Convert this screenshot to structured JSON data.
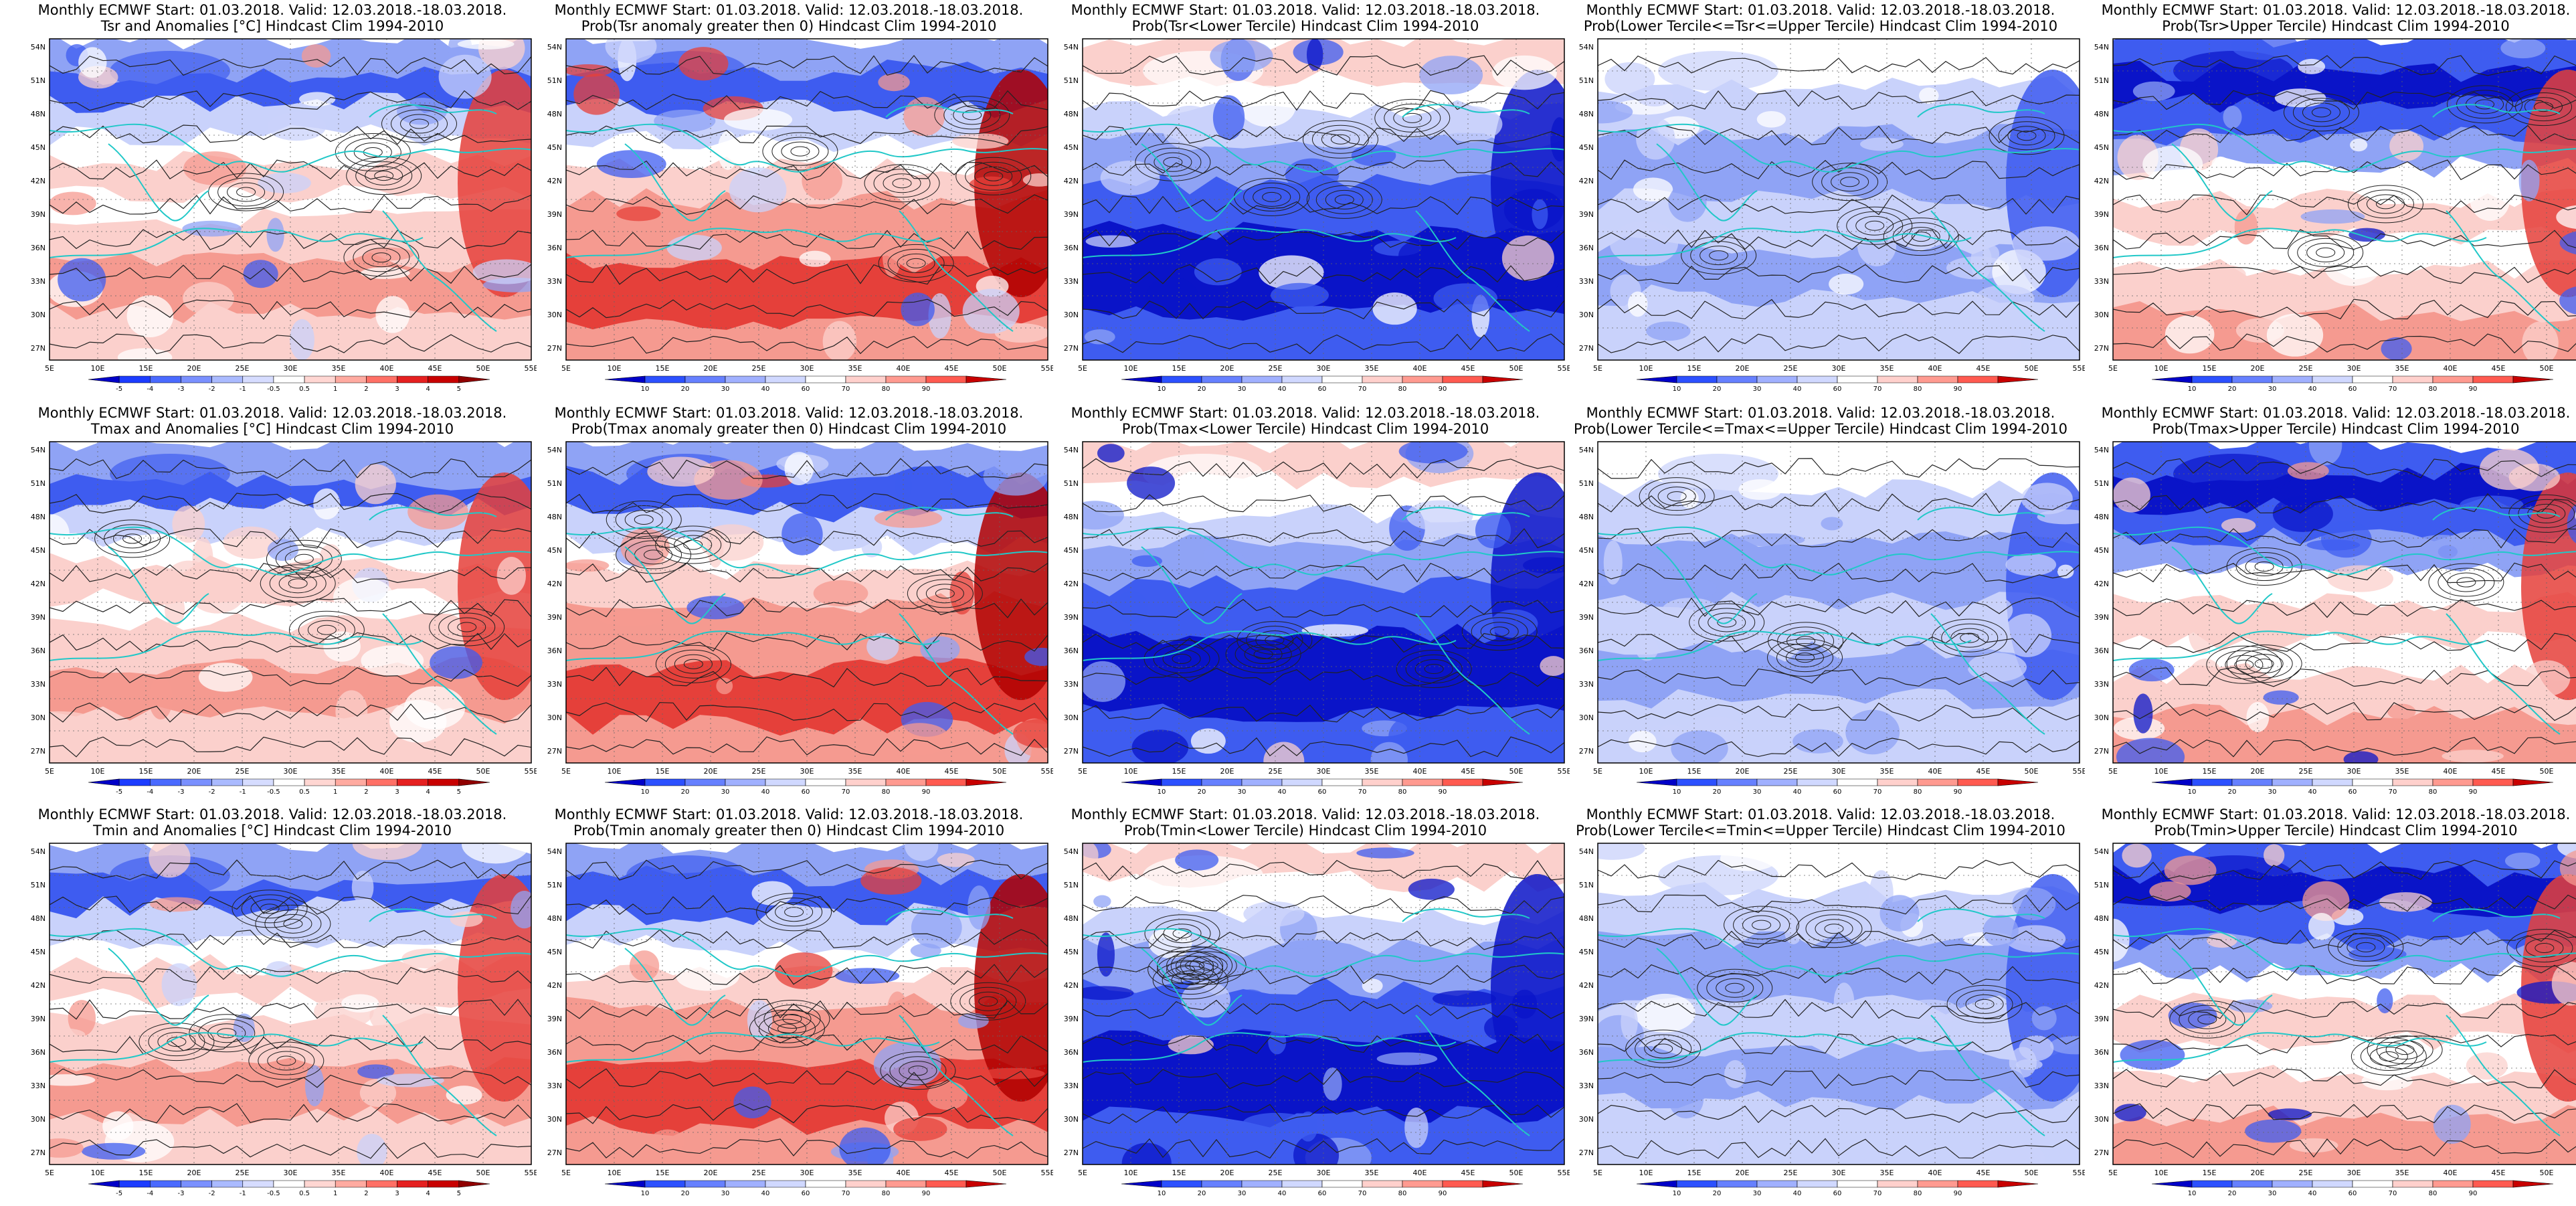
{
  "header_line": "Monthly ECMWF Start: 01.03.2018. Valid: 12.03.2018.-18.03.2018.",
  "lat_labels": [
    "54N",
    "51N",
    "48N",
    "45N",
    "42N",
    "39N",
    "36N",
    "33N",
    "30N",
    "27N"
  ],
  "lon_labels": [
    "5E",
    "10E",
    "15E",
    "20E",
    "25E",
    "30E",
    "35E",
    "40E",
    "45E",
    "50E",
    "55E"
  ],
  "palette": {
    "blue_dark": "#0a14c8",
    "blue_mid": "#3e5cf0",
    "blue_light": "#8fa3f5",
    "blue_pale": "#c9d2fb",
    "red_pale": "#fbd0cc",
    "red_light": "#f59a90",
    "red_mid": "#e5403a",
    "red_dark": "#b00000",
    "coast": "#21c8c8",
    "contour": "#222222"
  },
  "anomaly_scale": [
    "-5",
    "-4",
    "-3",
    "-2",
    "-1",
    "-0.5",
    "0.5",
    "1",
    "2",
    "3",
    "4",
    "5"
  ],
  "prob_scale": [
    "10",
    "20",
    "30",
    "40",
    "60",
    "70",
    "80",
    "90"
  ],
  "panels": [
    {
      "subtitle": "Tsr and Anomalies [°C] Hindcast Clim 1994-2010",
      "field": "anomaly",
      "scale": "anomaly"
    },
    {
      "subtitle": "Prob(Tsr anomaly greater then 0) Hindcast Clim 1994-2010",
      "field": "prob_pos",
      "scale": "prob"
    },
    {
      "subtitle": "Prob(Tsr<Lower Tercile) Hindcast Clim 1994-2010",
      "field": "prob_lower",
      "scale": "prob"
    },
    {
      "subtitle": "Prob(Lower Tercile<=Tsr<=Upper Tercile) Hindcast Clim 1994-2010",
      "field": "prob_middle",
      "scale": "prob"
    },
    {
      "subtitle": "Prob(Tsr>Upper Tercile) Hindcast Clim 1994-2010",
      "field": "prob_upper",
      "scale": "prob"
    },
    {
      "subtitle": "Tmax and Anomalies [°C] Hindcast Clim 1994-2010",
      "field": "anomaly",
      "scale": "anomaly"
    },
    {
      "subtitle": "Prob(Tmax anomaly greater then 0) Hindcast Clim 1994-2010",
      "field": "prob_pos",
      "scale": "prob"
    },
    {
      "subtitle": "Prob(Tmax<Lower Tercile) Hindcast Clim 1994-2010",
      "field": "prob_lower",
      "scale": "prob"
    },
    {
      "subtitle": "Prob(Lower Tercile<=Tmax<=Upper Tercile) Hindcast Clim 1994-2010",
      "field": "prob_middle",
      "scale": "prob"
    },
    {
      "subtitle": "Prob(Tmax>Upper Tercile) Hindcast Clim 1994-2010",
      "field": "prob_upper",
      "scale": "prob"
    },
    {
      "subtitle": "Tmin and Anomalies [°C] Hindcast Clim 1994-2010",
      "field": "anomaly",
      "scale": "anomaly"
    },
    {
      "subtitle": "Prob(Tmin anomaly greater then 0) Hindcast Clim 1994-2010",
      "field": "prob_pos",
      "scale": "prob"
    },
    {
      "subtitle": "Prob(Tmin<Lower Tercile) Hindcast Clim 1994-2010",
      "field": "prob_lower",
      "scale": "prob"
    },
    {
      "subtitle": "Prob(Lower Tercile<=Tmin<=Upper Tercile) Hindcast Clim 1994-2010",
      "field": "prob_middle",
      "scale": "prob"
    },
    {
      "subtitle": "Prob(Tmin>Upper Tercile) Hindcast Clim 1994-2010",
      "field": "prob_upper",
      "scale": "prob"
    }
  ]
}
